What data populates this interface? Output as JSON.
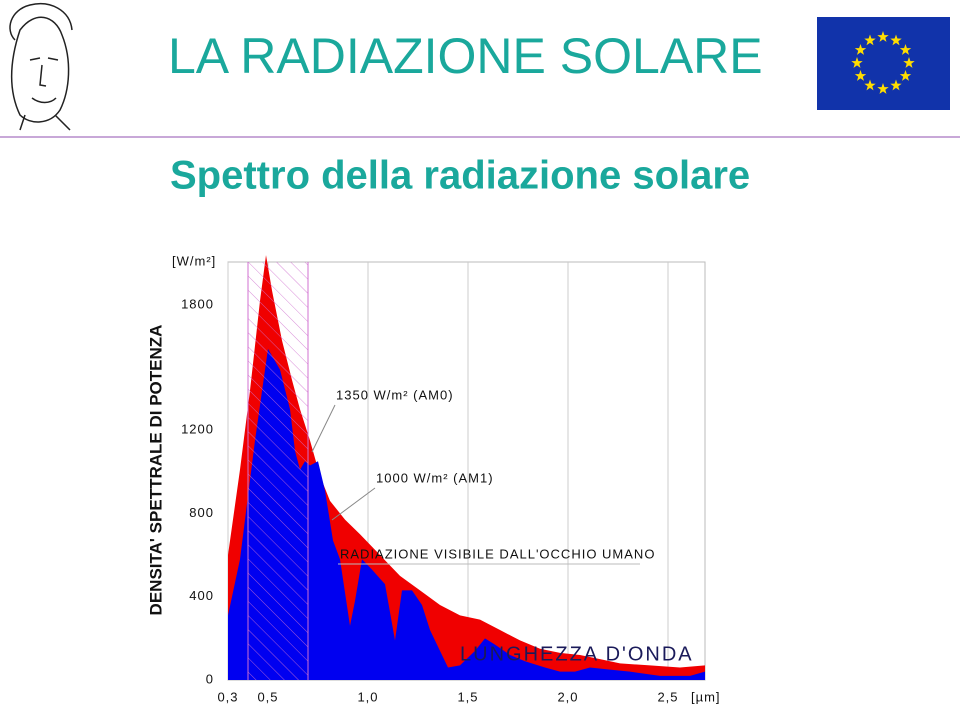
{
  "header": {
    "title": "LA RADIAZIONE SOLARE"
  },
  "chart_data": {
    "type": "area",
    "title": "Spettro della radiazione solare",
    "y_label": "DENSITA' SPETTRALE DI POTENZA",
    "y_unit": "[W/m²]",
    "x_label": "LUNGHEZZA D'ONDA",
    "x_unit": "[µm]",
    "xlim": [
      0.3,
      2.685
    ],
    "ylim": [
      0,
      2050
    ],
    "xticks": [
      {
        "value": 0.3,
        "label": "0,3"
      },
      {
        "value": 0.5,
        "label": "0,5"
      },
      {
        "value": 1.0,
        "label": "1,0"
      },
      {
        "value": 1.5,
        "label": "1,5"
      },
      {
        "value": 2.0,
        "label": "2,0"
      },
      {
        "value": 2.5,
        "label": "2,5"
      }
    ],
    "yticks": [
      0,
      400,
      800,
      1200,
      1800
    ],
    "grid": "x",
    "visible_band": {
      "label": "RADIAZIONE VISIBILE DALL'OCCHIO UMANO",
      "range": [
        0.4,
        0.7
      ],
      "color": "#d070d0"
    },
    "series": [
      {
        "name": "1350 W/m² (AM0)",
        "color": "#f00000",
        "x": [
          0.3,
          0.36,
          0.41,
          0.46,
          0.49,
          0.52,
          0.57,
          0.62,
          0.66,
          0.71,
          0.76,
          0.81,
          0.885,
          0.96,
          1.06,
          1.16,
          1.26,
          1.36,
          1.46,
          1.56,
          1.66,
          1.76,
          1.86,
          1.96,
          2.06,
          2.16,
          2.26,
          2.41,
          2.56,
          2.685
        ],
        "values": [
          600,
          1010,
          1390,
          1820,
          2040,
          1870,
          1630,
          1440,
          1300,
          1150,
          980,
          860,
          770,
          700,
          600,
          500,
          430,
          360,
          310,
          290,
          240,
          190,
          150,
          130,
          120,
          100,
          80,
          70,
          60,
          70
        ]
      },
      {
        "name": "1000 W/m² (AM1)",
        "color": "#0000f0",
        "x": [
          0.3,
          0.36,
          0.435,
          0.5,
          0.56,
          0.61,
          0.635,
          0.66,
          0.685,
          0.71,
          0.75,
          0.785,
          0.825,
          0.86,
          0.91,
          0.935,
          0.97,
          1.02,
          1.085,
          1.135,
          1.17,
          1.22,
          1.27,
          1.31,
          1.36,
          1.4,
          1.46,
          1.535,
          1.585,
          1.635,
          1.71,
          1.785,
          1.885,
          1.96,
          2.035,
          2.11,
          2.21,
          2.31,
          2.46,
          2.61,
          2.685
        ],
        "values": [
          310,
          580,
          1150,
          1590,
          1490,
          1300,
          1100,
          1010,
          1050,
          1030,
          1050,
          910,
          670,
          580,
          260,
          380,
          580,
          530,
          460,
          190,
          430,
          430,
          360,
          240,
          140,
          60,
          70,
          140,
          200,
          170,
          120,
          90,
          60,
          40,
          40,
          60,
          50,
          40,
          20,
          20,
          40
        ]
      }
    ]
  }
}
